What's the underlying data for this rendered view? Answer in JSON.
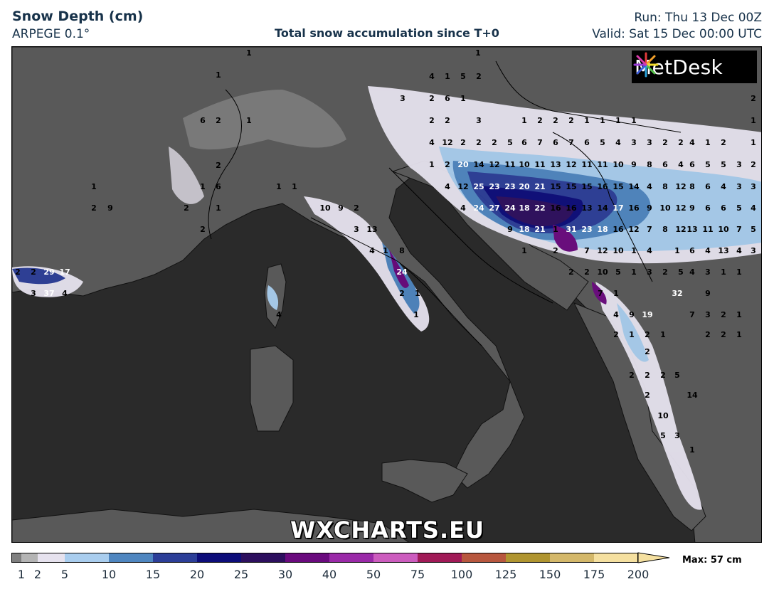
{
  "header": {
    "title": "Snow Depth (cm)",
    "model": "ARPEGE 0.1°",
    "subtitle": "Total snow accumulation since T+0",
    "run": "Run: Thu 13 Dec 00Z",
    "valid": "Valid: Sat 15 Dec 00:00 UTC"
  },
  "logo": {
    "text": "MetDesk",
    "icon": "metdesk-starburst-icon"
  },
  "watermark": "WXCHARTS.EU",
  "legend": {
    "max_label": "Max: 57 cm",
    "ticks": [
      "1",
      "2",
      "5",
      "10",
      "15",
      "20",
      "25",
      "30",
      "40",
      "50",
      "75",
      "100",
      "125",
      "150",
      "175",
      "200"
    ],
    "colors": [
      "#7f7f7f",
      "#b4b4b4",
      "#e6e2ee",
      "#a9cdee",
      "#4f86c0",
      "#2c3e98",
      "#0d0d7a",
      "#2d0f5e",
      "#6a0a7e",
      "#9a29a8",
      "#cc5cbe",
      "#a11a57",
      "#b8573e",
      "#b09530",
      "#d4b86a",
      "#f5e0a0"
    ]
  },
  "colors": {
    "sea": "#2a2a2a",
    "land": "#5a5a5a",
    "border": "#000000"
  },
  "map_labels": [
    {
      "t": "1"
    },
    {
      "t": "1"
    },
    {
      "t": "4"
    },
    {
      "t": "1"
    },
    {
      "t": "5"
    },
    {
      "t": "2"
    },
    {
      "t": "1"
    },
    {
      "t": "3"
    },
    {
      "t": "2"
    },
    {
      "t": "6"
    },
    {
      "t": "1"
    },
    {
      "t": "2"
    },
    {
      "t": "6"
    },
    {
      "t": "2"
    },
    {
      "t": "1"
    },
    {
      "t": "2"
    },
    {
      "t": "2"
    },
    {
      "t": "3"
    },
    {
      "t": "1"
    },
    {
      "t": "2"
    },
    {
      "t": "2"
    },
    {
      "t": "2"
    },
    {
      "t": "1"
    },
    {
      "t": "1"
    },
    {
      "t": "1"
    },
    {
      "t": "1"
    },
    {
      "t": "1"
    },
    {
      "t": "4"
    },
    {
      "t": "12"
    },
    {
      "t": "2"
    },
    {
      "t": "2"
    },
    {
      "t": "2"
    },
    {
      "t": "5"
    },
    {
      "t": "6"
    },
    {
      "t": "7"
    },
    {
      "t": "6"
    },
    {
      "t": "7"
    },
    {
      "t": "6"
    },
    {
      "t": "5"
    },
    {
      "t": "4"
    },
    {
      "t": "3"
    },
    {
      "t": "3"
    },
    {
      "t": "2"
    },
    {
      "t": "2"
    },
    {
      "t": "4"
    },
    {
      "t": "1"
    },
    {
      "t": "2"
    },
    {
      "t": "1"
    },
    {
      "t": "1"
    },
    {
      "t": "2"
    },
    {
      "t": "20"
    },
    {
      "t": "14"
    },
    {
      "t": "12"
    },
    {
      "t": "11"
    },
    {
      "t": "10"
    },
    {
      "t": "11"
    },
    {
      "t": "13"
    },
    {
      "t": "12"
    },
    {
      "t": "11"
    },
    {
      "t": "11"
    },
    {
      "t": "10"
    },
    {
      "t": "9"
    },
    {
      "t": "8"
    },
    {
      "t": "6"
    },
    {
      "t": "4"
    },
    {
      "t": "6"
    },
    {
      "t": "5"
    },
    {
      "t": "5"
    },
    {
      "t": "3"
    },
    {
      "t": "2"
    },
    {
      "t": "1"
    },
    {
      "t": "2"
    },
    {
      "t": "1"
    },
    {
      "t": "6"
    },
    {
      "t": "1"
    },
    {
      "t": "1"
    },
    {
      "t": "4"
    },
    {
      "t": "12"
    },
    {
      "t": "25"
    },
    {
      "t": "23"
    },
    {
      "t": "23"
    },
    {
      "t": "20"
    },
    {
      "t": "21"
    },
    {
      "t": "15"
    },
    {
      "t": "15"
    },
    {
      "t": "15"
    },
    {
      "t": "16"
    },
    {
      "t": "15"
    },
    {
      "t": "14"
    },
    {
      "t": "4"
    },
    {
      "t": "8"
    },
    {
      "t": "12"
    },
    {
      "t": "8"
    },
    {
      "t": "6"
    },
    {
      "t": "4"
    },
    {
      "t": "3"
    },
    {
      "t": "3"
    },
    {
      "t": "2"
    },
    {
      "t": "9"
    },
    {
      "t": "2"
    },
    {
      "t": "1"
    },
    {
      "t": "10"
    },
    {
      "t": "9"
    },
    {
      "t": "2"
    },
    {
      "t": "4"
    },
    {
      "t": "24"
    },
    {
      "t": "27"
    },
    {
      "t": "24"
    },
    {
      "t": "18"
    },
    {
      "t": "22"
    },
    {
      "t": "16"
    },
    {
      "t": "16"
    },
    {
      "t": "13"
    },
    {
      "t": "14"
    },
    {
      "t": "17"
    },
    {
      "t": "16"
    },
    {
      "t": "9"
    },
    {
      "t": "10"
    },
    {
      "t": "12"
    },
    {
      "t": "9"
    },
    {
      "t": "6"
    },
    {
      "t": "6"
    },
    {
      "t": "5"
    },
    {
      "t": "4"
    },
    {
      "t": "2"
    },
    {
      "t": "3"
    },
    {
      "t": "13"
    },
    {
      "t": "9"
    },
    {
      "t": "18"
    },
    {
      "t": "21"
    },
    {
      "t": "1"
    },
    {
      "t": "31"
    },
    {
      "t": "23"
    },
    {
      "t": "18"
    },
    {
      "t": "16"
    },
    {
      "t": "12"
    },
    {
      "t": "7"
    },
    {
      "t": "8"
    },
    {
      "t": "12"
    },
    {
      "t": "13"
    },
    {
      "t": "11"
    },
    {
      "t": "10"
    },
    {
      "t": "7"
    },
    {
      "t": "5"
    },
    {
      "t": "4"
    },
    {
      "t": "1"
    },
    {
      "t": "8"
    },
    {
      "t": "1"
    },
    {
      "t": "2"
    },
    {
      "t": "7"
    },
    {
      "t": "12"
    },
    {
      "t": "10"
    },
    {
      "t": "1"
    },
    {
      "t": "4"
    },
    {
      "t": "1"
    },
    {
      "t": "6"
    },
    {
      "t": "4"
    },
    {
      "t": "13"
    },
    {
      "t": "4"
    },
    {
      "t": "3"
    },
    {
      "t": "2"
    },
    {
      "t": "2"
    },
    {
      "t": "29"
    },
    {
      "t": "17"
    },
    {
      "t": "24"
    },
    {
      "t": "3"
    },
    {
      "t": "37"
    },
    {
      "t": "2"
    },
    {
      "t": "2"
    },
    {
      "t": "10"
    },
    {
      "t": "5"
    },
    {
      "t": "1"
    },
    {
      "t": "3"
    },
    {
      "t": "2"
    },
    {
      "t": "5"
    },
    {
      "t": "4"
    },
    {
      "t": "3"
    },
    {
      "t": "1"
    },
    {
      "t": "1"
    },
    {
      "t": "4"
    },
    {
      "t": "2"
    },
    {
      "t": "1"
    },
    {
      "t": "7"
    },
    {
      "t": "1"
    },
    {
      "t": "32"
    },
    {
      "t": "9"
    },
    {
      "t": "4"
    },
    {
      "t": "1"
    },
    {
      "t": "4"
    },
    {
      "t": "9"
    },
    {
      "t": "19"
    },
    {
      "t": "7"
    },
    {
      "t": "3"
    },
    {
      "t": "2"
    },
    {
      "t": "1"
    },
    {
      "t": "2"
    },
    {
      "t": "1"
    },
    {
      "t": "2"
    },
    {
      "t": "1"
    },
    {
      "t": "2"
    },
    {
      "t": "2"
    },
    {
      "t": "1"
    },
    {
      "t": "2"
    },
    {
      "t": "2"
    },
    {
      "t": "2"
    },
    {
      "t": "2"
    },
    {
      "t": "5"
    },
    {
      "t": "2"
    },
    {
      "t": "14"
    },
    {
      "t": "10"
    },
    {
      "t": "5"
    },
    {
      "t": "3"
    },
    {
      "t": "1"
    }
  ]
}
